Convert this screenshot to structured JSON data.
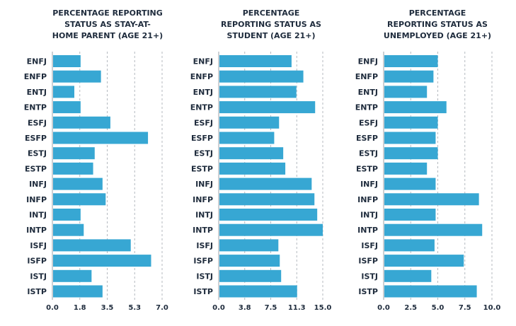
{
  "chart_data": [
    {
      "type": "bar",
      "orientation": "horizontal",
      "title_lines": [
        "PERCENTAGE REPORTING",
        "STATUS AS STAY-AT-",
        "HOME PARENT (AGE 21+)"
      ],
      "categories": [
        "ENFJ",
        "ENFP",
        "ENTJ",
        "ENTP",
        "ESFJ",
        "ESFP",
        "ESTJ",
        "ESTP",
        "INFJ",
        "INFP",
        "INTJ",
        "INTP",
        "ISFJ",
        "ISFP",
        "ISTJ",
        "ISTP"
      ],
      "values": [
        1.8,
        3.1,
        1.4,
        1.8,
        3.7,
        6.1,
        2.7,
        2.6,
        3.2,
        3.4,
        1.8,
        2.0,
        5.0,
        6.3,
        2.5,
        3.2
      ],
      "xlim": [
        0,
        7.0
      ],
      "xticks": [
        "0.0",
        "1.8",
        "3.5",
        "5.3",
        "7.0"
      ],
      "grid": "vertical dashed",
      "bar_color": "#37a7d3"
    },
    {
      "type": "bar",
      "orientation": "horizontal",
      "title_lines": [
        "PERCENTAGE",
        "REPORTING STATUS AS",
        "STUDENT (AGE 21+)"
      ],
      "categories": [
        "ENFJ",
        "ENFP",
        "ENTJ",
        "ENTP",
        "ESFJ",
        "ESFP",
        "ESTJ",
        "ESTP",
        "INFJ",
        "INFP",
        "INTJ",
        "INTP",
        "ISFJ",
        "ISFP",
        "ISTJ",
        "ISTP"
      ],
      "values": [
        10.5,
        12.2,
        11.2,
        13.9,
        8.7,
        8.0,
        9.3,
        9.6,
        13.4,
        13.8,
        14.2,
        15.0,
        8.6,
        8.8,
        9.0,
        11.3
      ],
      "xlim": [
        0,
        15.0
      ],
      "xticks": [
        "0.0",
        "3.8",
        "7.5",
        "11.3",
        "15.0"
      ],
      "grid": "vertical dashed",
      "bar_color": "#37a7d3"
    },
    {
      "type": "bar",
      "orientation": "horizontal",
      "title_lines": [
        "PERCENTAGE",
        "REPORTING STATUS AS",
        "UNEMPLOYED (AGE 21+)"
      ],
      "categories": [
        "ENFJ",
        "ENFP",
        "ENTJ",
        "ENTP",
        "ESFJ",
        "ESFP",
        "ESTJ",
        "ESTP",
        "INFJ",
        "INFP",
        "INTJ",
        "INTP",
        "ISFJ",
        "ISFP",
        "ISTJ",
        "ISTP"
      ],
      "values": [
        5.0,
        4.6,
        4.0,
        5.8,
        5.0,
        4.8,
        5.0,
        4.0,
        4.8,
        8.8,
        4.8,
        9.1,
        4.7,
        7.4,
        4.4,
        8.6
      ],
      "xlim": [
        0,
        10.0
      ],
      "xticks": [
        "0.0",
        "2.5",
        "5.0",
        "7.5",
        "10.0"
      ],
      "grid": "vertical dashed",
      "bar_color": "#37a7d3"
    }
  ]
}
